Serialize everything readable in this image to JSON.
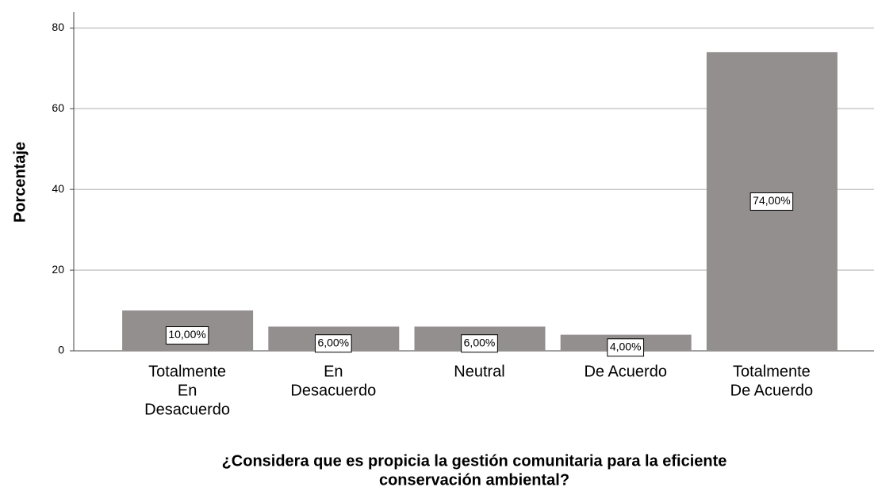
{
  "chart_data": {
    "type": "bar",
    "y_label": "Porcentaje",
    "x_label": [
      "¿Considera que es propicia la gestión comunitaria para la eficiente",
      "conservación ambiental?"
    ],
    "categories": [
      [
        "Totalmente",
        "En",
        "Desacuerdo"
      ],
      [
        "En",
        "Desacuerdo"
      ],
      [
        "Neutral"
      ],
      [
        "De Acuerdo"
      ],
      [
        "Totalmente",
        "De Acuerdo"
      ]
    ],
    "values": [
      10,
      6,
      6,
      4,
      74
    ],
    "value_labels": [
      "10,00%",
      "6,00%",
      "6,00%",
      "4,00%",
      "74,00%"
    ],
    "color": "#938f8e",
    "ylim": [
      0,
      84
    ],
    "yticks": [
      0,
      20,
      40,
      60,
      80
    ],
    "grid": true
  }
}
